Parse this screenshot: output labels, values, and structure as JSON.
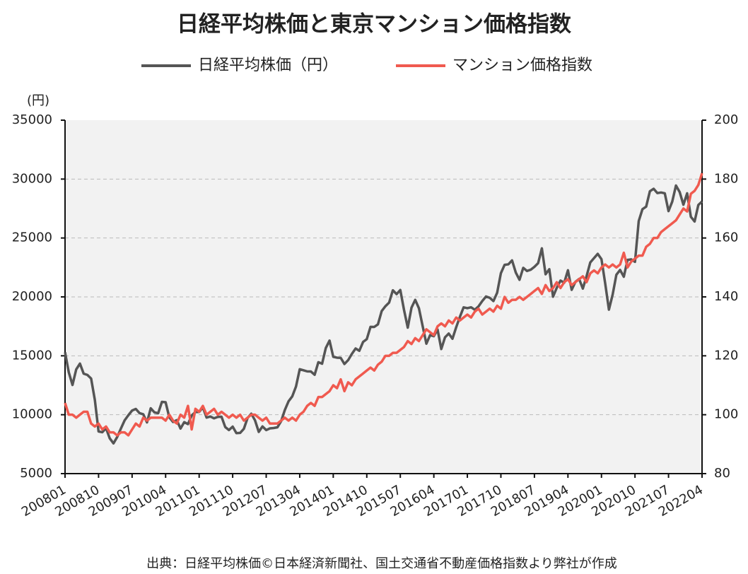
{
  "chart_data": {
    "type": "line",
    "title": "日経平均株価と東京マンション価格指数",
    "ylabel": "(円)",
    "source": "出典：日経平均株価©日本経済新聞社、国土交通省不動産価格指数より弊社が作成",
    "categories": [
      "200801",
      null,
      null,
      null,
      null,
      null,
      null,
      null,
      null,
      "200810",
      null,
      null,
      null,
      null,
      null,
      null,
      null,
      null,
      "200907",
      null,
      null,
      null,
      null,
      null,
      null,
      null,
      null,
      "201004",
      null,
      null,
      null,
      null,
      null,
      null,
      null,
      null,
      "201101",
      null,
      null,
      null,
      null,
      null,
      null,
      null,
      null,
      "201110",
      null,
      null,
      null,
      null,
      null,
      null,
      null,
      null,
      "201207",
      null,
      null,
      null,
      null,
      null,
      null,
      null,
      null,
      "201304",
      null,
      null,
      null,
      null,
      null,
      null,
      null,
      null,
      "201401",
      null,
      null,
      null,
      null,
      null,
      null,
      null,
      null,
      "201410",
      null,
      null,
      null,
      null,
      null,
      null,
      null,
      null,
      "201507",
      null,
      null,
      null,
      null,
      null,
      null,
      null,
      null,
      "201604",
      null,
      null,
      null,
      null,
      null,
      null,
      null,
      null,
      "201701",
      null,
      null,
      null,
      null,
      null,
      null,
      null,
      null,
      "201710",
      null,
      null,
      null,
      null,
      null,
      null,
      null,
      null,
      "201807",
      null,
      null,
      null,
      null,
      null,
      null,
      null,
      null,
      "201904",
      null,
      null,
      null,
      null,
      null,
      null,
      null,
      null,
      "202001",
      null,
      null,
      null,
      null,
      null,
      null,
      null,
      null,
      "202010",
      null,
      null,
      null,
      null,
      null,
      null,
      null,
      null,
      "202107",
      null,
      null,
      null,
      null,
      null,
      null,
      null,
      null,
      "202204"
    ],
    "series": [
      {
        "name": "日経平均株価（円）",
        "color": "#555555",
        "axis": "y",
        "values": [
          15300,
          13603,
          12525,
          13849,
          14338,
          13481,
          13376,
          13072,
          11259,
          8576,
          8512,
          8859,
          7994,
          7568,
          8109,
          8828,
          9522,
          9958,
          10356,
          10492,
          10133,
          10034,
          9345,
          10546,
          10198,
          10126,
          11089,
          11057,
          9768,
          9382,
          9537,
          8824,
          9369,
          9202,
          9937,
          10228,
          10237,
          10624,
          9755,
          9849,
          9693,
          9816,
          9833,
          8955,
          8700,
          8988,
          8434,
          8455,
          8802,
          9723,
          10083,
          9520,
          8542,
          9006,
          8695,
          8839,
          8870,
          8928,
          9446,
          10395,
          11138,
          11559,
          12397,
          13860,
          13774,
          13677,
          13668,
          13388,
          14455,
          14327,
          15662,
          16291,
          14914,
          14841,
          14827,
          14304,
          14632,
          15162,
          15620,
          15425,
          16173,
          16413,
          17459,
          17450,
          17674,
          18797,
          19206,
          19520,
          20563,
          20235,
          20585,
          18890,
          17388,
          19083,
          19747,
          19033,
          17518,
          16026,
          16758,
          16666,
          17234,
          15575,
          16569,
          16887,
          16449,
          17425,
          18308,
          19114,
          19041,
          19118,
          18909,
          19196,
          19650,
          20033,
          19925,
          19646,
          20356,
          22011,
          22724,
          22764,
          23098,
          22068,
          21454,
          22467,
          22201,
          22304,
          22553,
          22865,
          24120,
          21920,
          22351,
          20015,
          20773,
          21385,
          21205,
          22259,
          20601,
          21275,
          21521,
          20704,
          21756,
          22927,
          23294,
          23656,
          23205,
          21143,
          18917,
          20193,
          21878,
          22288,
          21710,
          23140,
          23185,
          22977,
          26433,
          27444,
          27663,
          28966,
          29179,
          28813,
          28860,
          28792,
          27284,
          28089,
          29453,
          28893,
          27822,
          28792,
          26800,
          26400,
          27800,
          28100
        ]
      },
      {
        "name": "マンション価格指数",
        "color": "#f05a4f",
        "axis": "y2",
        "values": [
          104,
          100,
          100,
          99,
          100,
          101,
          101,
          97,
          96,
          97,
          95,
          96,
          94,
          94,
          93,
          94,
          94,
          93,
          95,
          97,
          96,
          99,
          98,
          99,
          99,
          99,
          99,
          98,
          100,
          98,
          97,
          100,
          99,
          103,
          95,
          102,
          101,
          103,
          100,
          101,
          102,
          100,
          101,
          100,
          99,
          100,
          99,
          100,
          98,
          99,
          100,
          100,
          99,
          98,
          99,
          97,
          97,
          97,
          98,
          99,
          98,
          99,
          98,
          100,
          101,
          103,
          104,
          103,
          106,
          106,
          107,
          108,
          110,
          109,
          112,
          108,
          111,
          110,
          112,
          113,
          114,
          115,
          116,
          115,
          117,
          118,
          120,
          120,
          121,
          121,
          122,
          123,
          125,
          124,
          126,
          125,
          127,
          129,
          128,
          127,
          130,
          131,
          130,
          132,
          131,
          133,
          132,
          133,
          134,
          133,
          135,
          136,
          134,
          135,
          136,
          135,
          137,
          136,
          140,
          138,
          139,
          139,
          140,
          139,
          140,
          141,
          142,
          143,
          141,
          144,
          142,
          143,
          145,
          143,
          145,
          146,
          144,
          145,
          146,
          147,
          145,
          148,
          149,
          148,
          150,
          151,
          150,
          151,
          150,
          151,
          155,
          150,
          152,
          153,
          154,
          154,
          157,
          158,
          160,
          160,
          162,
          163,
          164,
          165,
          166,
          168,
          170,
          169,
          175,
          176,
          178,
          182
        ]
      }
    ],
    "ylim": [
      5000,
      35000
    ],
    "yticks": [
      5000,
      10000,
      15000,
      20000,
      25000,
      30000,
      35000
    ],
    "y2lim": [
      80,
      200
    ],
    "y2ticks": [
      80,
      100,
      120,
      140,
      160,
      180,
      200
    ],
    "grid": true
  }
}
